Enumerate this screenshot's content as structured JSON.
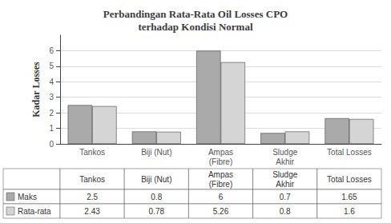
{
  "chart_data": {
    "type": "bar",
    "title": "Perbandingan Rata-Rata Oil Losses CPO\nterhadap Kondisi Normal",
    "ylabel": "Kadar Losses",
    "categories": [
      "Tankos",
      "Biji (Nut)",
      "Ampas\n(Fibre)",
      "Sludge\nAkhir",
      "Total Losses"
    ],
    "series": [
      {
        "name": "Maks",
        "color": "#aaaaaa",
        "values": [
          2.5,
          0.8,
          6.0,
          0.7,
          1.65
        ]
      },
      {
        "name": "Rata-rata",
        "color": "#d5d5d5",
        "values": [
          2.43,
          0.78,
          5.26,
          0.8,
          1.6
        ]
      }
    ],
    "ylim": [
      0,
      7
    ],
    "yticks": [
      0,
      1,
      2,
      3,
      4,
      5,
      6
    ],
    "grid": true
  }
}
